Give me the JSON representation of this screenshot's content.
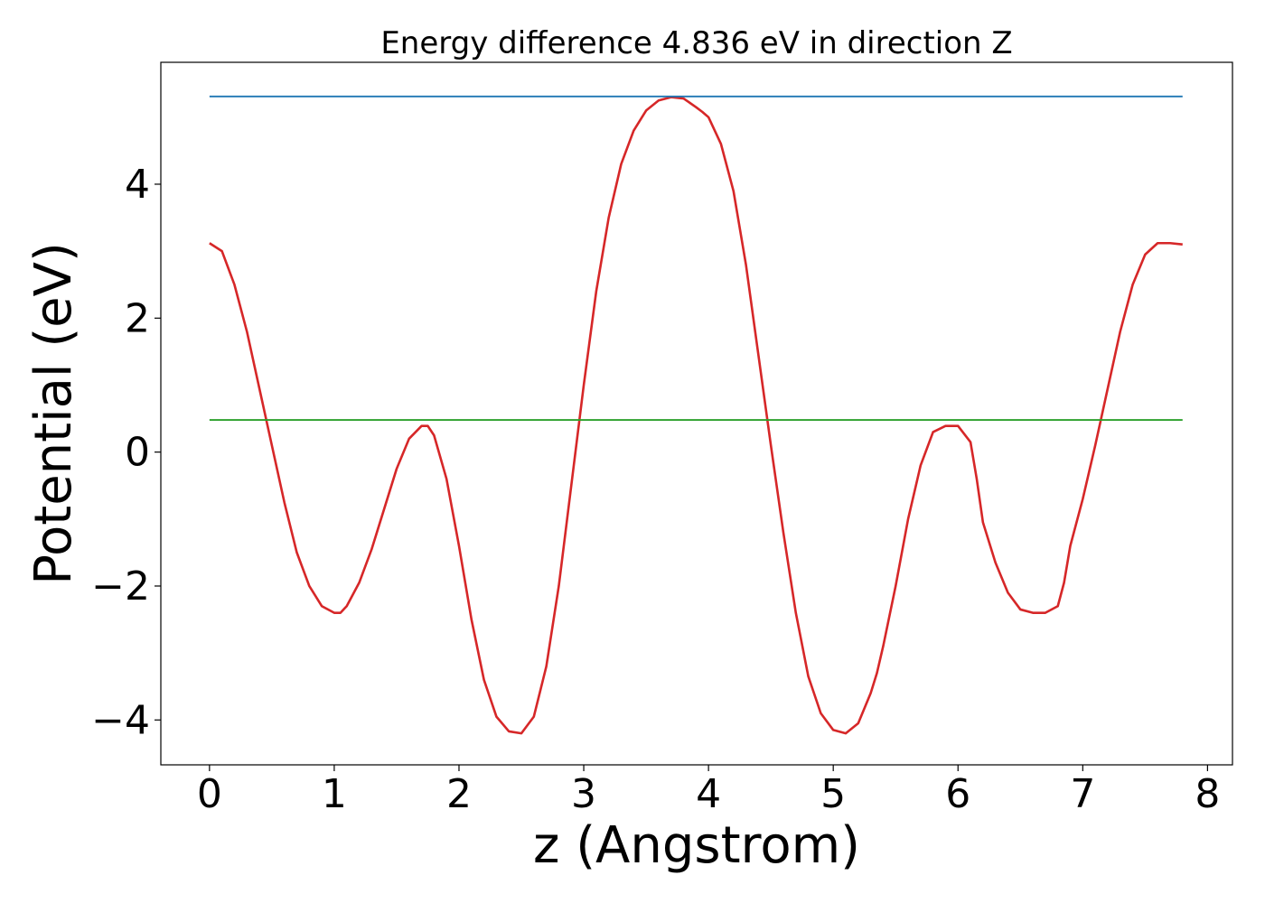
{
  "chart_data": {
    "type": "line",
    "title": "Energy difference 4.836 eV in direction Z",
    "xlabel": "z (Angstrom)",
    "ylabel": "Potential (eV)",
    "xlim": [
      -0.39,
      8.2
    ],
    "ylim": [
      -4.67,
      5.82
    ],
    "xticks": [
      0,
      1,
      2,
      3,
      4,
      5,
      6,
      7,
      8
    ],
    "xtick_labels": [
      "0",
      "1",
      "2",
      "3",
      "4",
      "5",
      "6",
      "7",
      "8"
    ],
    "yticks": [
      -4,
      -2,
      0,
      2,
      4
    ],
    "ytick_labels": [
      "−4",
      "−2",
      "0",
      "2",
      "4"
    ],
    "grid": false,
    "legend": "none",
    "series": [
      {
        "color": "#d62728",
        "x": [
          0.0,
          0.1,
          0.2,
          0.3,
          0.4,
          0.5,
          0.6,
          0.7,
          0.8,
          0.9,
          1.0,
          1.05,
          1.1,
          1.2,
          1.3,
          1.4,
          1.5,
          1.6,
          1.7,
          1.75,
          1.8,
          1.9,
          2.0,
          2.1,
          2.2,
          2.3,
          2.4,
          2.5,
          2.6,
          2.7,
          2.8,
          2.9,
          3.0,
          3.1,
          3.2,
          3.3,
          3.4,
          3.5,
          3.6,
          3.7,
          3.8,
          3.9,
          3.95,
          4.0,
          4.1,
          4.2,
          4.3,
          4.4,
          4.5,
          4.6,
          4.7,
          4.8,
          4.9,
          5.0,
          5.1,
          5.2,
          5.3,
          5.35,
          5.4,
          5.5,
          5.6,
          5.7,
          5.8,
          5.9,
          6.0,
          6.1,
          6.15,
          6.2,
          6.3,
          6.4,
          6.5,
          6.6,
          6.7,
          6.8,
          6.85,
          6.9,
          7.0,
          7.1,
          7.2,
          7.3,
          7.4,
          7.5,
          7.6,
          7.7,
          7.8
        ],
        "values": [
          3.12,
          3.0,
          2.5,
          1.8,
          0.95,
          0.1,
          -0.75,
          -1.5,
          -2.0,
          -2.3,
          -2.4,
          -2.4,
          -2.3,
          -1.95,
          -1.45,
          -0.85,
          -0.25,
          0.2,
          0.39,
          0.39,
          0.25,
          -0.4,
          -1.4,
          -2.5,
          -3.4,
          -3.95,
          -4.17,
          -4.2,
          -3.95,
          -3.2,
          -2.0,
          -0.5,
          1.0,
          2.4,
          3.5,
          4.3,
          4.8,
          5.1,
          5.25,
          5.3,
          5.28,
          5.15,
          5.08,
          5.0,
          4.6,
          3.9,
          2.8,
          1.45,
          0.1,
          -1.2,
          -2.4,
          -3.35,
          -3.9,
          -4.15,
          -4.2,
          -4.05,
          -3.6,
          -3.3,
          -2.9,
          -2.0,
          -1.0,
          -0.2,
          0.3,
          0.39,
          0.39,
          0.15,
          -0.4,
          -1.05,
          -1.65,
          -2.1,
          -2.35,
          -2.4,
          -2.4,
          -2.3,
          -1.95,
          -1.4,
          -0.7,
          0.1,
          0.95,
          1.8,
          2.5,
          2.95,
          3.12,
          3.12,
          3.1
        ]
      },
      {
        "color": "#1f77b4",
        "x": [
          0.0,
          7.8
        ],
        "values": [
          5.31,
          5.31
        ]
      },
      {
        "color": "#2ca02c",
        "x": [
          0.0,
          7.8
        ],
        "values": [
          0.48,
          0.48
        ]
      }
    ]
  }
}
